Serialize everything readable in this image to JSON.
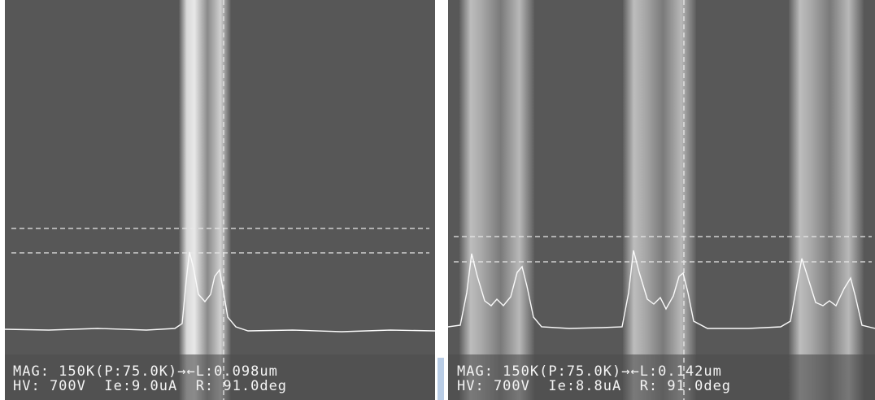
{
  "panels": [
    {
      "line1": "MAG: 150K(P:75.0K)→←L:0.098um",
      "line2": "HV: 700V  Ie:9.0uA  R: 91.0deg"
    },
    {
      "line1": "MAG: 150K(P:75.0K)→←L:0.142um",
      "line2": "HV: 700V  Ie:8.8uA  R: 91.0deg"
    }
  ]
}
